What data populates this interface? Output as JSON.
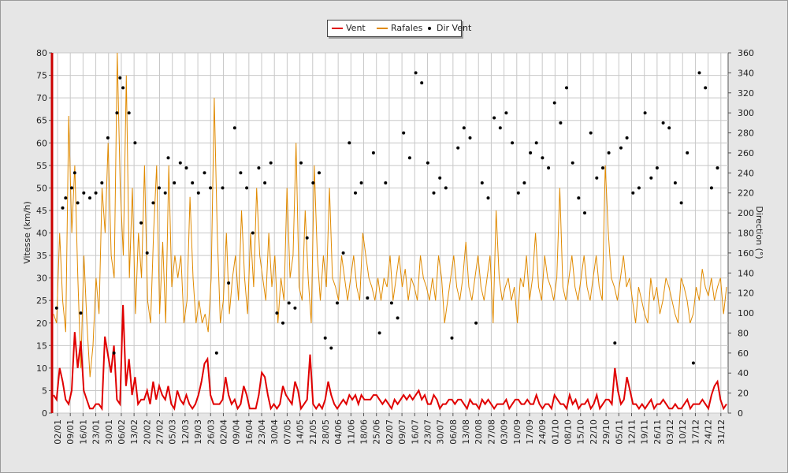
{
  "chart_data": {
    "type": "line",
    "title": "",
    "ylabel": "Vitesse (km/h)",
    "y2label": "Direction (°)",
    "ylim": [
      0,
      80
    ],
    "y2lim": [
      0,
      360
    ],
    "yticks": [
      0,
      5,
      10,
      15,
      20,
      25,
      30,
      35,
      40,
      45,
      50,
      55,
      60,
      65,
      70,
      75,
      80
    ],
    "y2ticks": [
      0,
      20,
      40,
      60,
      80,
      100,
      120,
      140,
      160,
      180,
      200,
      220,
      240,
      260,
      280,
      300,
      320,
      340,
      360
    ],
    "x_tick_labels": [
      "02/01",
      "09/01",
      "16/01",
      "23/01",
      "30/01",
      "06/02",
      "13/02",
      "20/02",
      "27/02",
      "05/03",
      "12/03",
      "19/03",
      "26/03",
      "02/04",
      "09/04",
      "16/04",
      "23/04",
      "30/04",
      "07/05",
      "14/05",
      "21/05",
      "28/05",
      "04/06",
      "11/06",
      "18/06",
      "25/06",
      "02/07",
      "09/07",
      "16/07",
      "23/07",
      "30/07",
      "06/08",
      "13/08",
      "20/08",
      "27/08",
      "03/09",
      "10/09",
      "17/09",
      "24/09",
      "01/10",
      "08/10",
      "15/10",
      "22/10",
      "29/10",
      "05/11",
      "12/11",
      "19/11",
      "26/11",
      "03/12",
      "10/12",
      "17/12",
      "24/12",
      "31/12"
    ],
    "grid": true,
    "legend_position": "top-center",
    "series": [
      {
        "name": "Vent",
        "axis": "left",
        "color": "#e00000",
        "values": [
          4,
          3,
          10,
          7,
          3,
          2,
          5,
          18,
          10,
          16,
          5,
          3,
          1,
          1,
          2,
          2,
          1,
          17,
          13,
          9,
          15,
          3,
          2,
          24,
          6,
          12,
          4,
          8,
          2,
          3,
          3,
          5,
          2,
          7,
          3,
          6,
          4,
          3,
          6,
          2,
          1,
          5,
          3,
          2,
          4,
          2,
          1,
          2,
          4,
          7,
          11,
          12,
          4,
          2,
          2,
          2,
          3,
          8,
          4,
          2,
          3,
          1,
          2,
          6,
          4,
          1,
          1,
          1,
          4,
          9,
          8,
          4,
          1,
          2,
          1,
          2,
          6,
          4,
          3,
          2,
          7,
          5,
          1,
          2,
          3,
          13,
          2,
          1,
          2,
          1,
          3,
          7,
          4,
          2,
          1,
          2,
          3,
          2,
          4,
          3,
          4,
          2,
          4,
          3,
          3,
          3,
          4,
          4,
          3,
          2,
          3,
          2,
          1,
          3,
          2,
          3,
          4,
          3,
          4,
          3,
          4,
          5,
          3,
          4,
          2,
          2,
          4,
          3,
          1,
          2,
          2,
          3,
          3,
          2,
          3,
          3,
          2,
          1,
          3,
          2,
          2,
          1,
          3,
          2,
          3,
          2,
          1,
          2,
          2,
          2,
          3,
          1,
          2,
          3,
          3,
          2,
          2,
          3,
          2,
          2,
          4,
          2,
          1,
          2,
          2,
          1,
          4,
          3,
          2,
          2,
          1,
          4,
          2,
          3,
          1,
          2,
          2,
          3,
          1,
          2,
          4,
          1,
          2,
          3,
          3,
          2,
          10,
          5,
          2,
          3,
          8,
          5,
          2,
          2,
          1,
          2,
          1,
          2,
          3,
          1,
          2,
          2,
          3,
          2,
          1,
          1,
          2,
          1,
          1,
          2,
          3,
          1,
          2,
          2,
          2,
          3,
          2,
          1,
          4,
          6,
          7,
          3,
          1,
          2
        ]
      },
      {
        "name": "Rafales",
        "axis": "left",
        "color": "#e08a00",
        "values": [
          22,
          20,
          40,
          25,
          18,
          66,
          40,
          55,
          30,
          10,
          35,
          20,
          8,
          15,
          30,
          22,
          50,
          40,
          60,
          35,
          30,
          80,
          50,
          35,
          75,
          30,
          50,
          22,
          40,
          30,
          55,
          25,
          20,
          40,
          55,
          22,
          38,
          20,
          55,
          28,
          35,
          30,
          35,
          20,
          25,
          48,
          30,
          20,
          25,
          20,
          22,
          18,
          30,
          70,
          40,
          20,
          25,
          40,
          22,
          30,
          35,
          25,
          45,
          30,
          22,
          40,
          28,
          50,
          35,
          30,
          25,
          40,
          28,
          35,
          20,
          30,
          25,
          50,
          30,
          35,
          60,
          28,
          25,
          45,
          30,
          20,
          55,
          35,
          25,
          35,
          28,
          50,
          30,
          28,
          25,
          35,
          30,
          25,
          30,
          35,
          28,
          25,
          40,
          35,
          30,
          28,
          25,
          30,
          25,
          30,
          28,
          35,
          25,
          30,
          35,
          28,
          32,
          25,
          30,
          28,
          25,
          35,
          30,
          28,
          25,
          30,
          25,
          35,
          30,
          20,
          25,
          30,
          35,
          28,
          25,
          30,
          38,
          28,
          25,
          30,
          35,
          28,
          25,
          30,
          35,
          20,
          45,
          30,
          25,
          28,
          30,
          25,
          28,
          20,
          30,
          28,
          35,
          25,
          30,
          40,
          28,
          25,
          35,
          30,
          28,
          25,
          30,
          50,
          28,
          25,
          30,
          35,
          28,
          25,
          30,
          35,
          28,
          25,
          30,
          35,
          28,
          25,
          55,
          40,
          30,
          28,
          25,
          30,
          35,
          28,
          30,
          25,
          20,
          28,
          25,
          22,
          20,
          30,
          25,
          28,
          22,
          25,
          30,
          28,
          25,
          22,
          20,
          30,
          28,
          25,
          20,
          22,
          28,
          25,
          32,
          28,
          26,
          30,
          25,
          28,
          30,
          22,
          28
        ]
      }
    ],
    "scatter": {
      "name": "Dir Vent",
      "axis": "right",
      "color": "#000000",
      "points": [
        [
          1,
          105
        ],
        [
          3,
          205
        ],
        [
          4,
          215
        ],
        [
          6,
          225
        ],
        [
          7,
          240
        ],
        [
          8,
          210
        ],
        [
          9,
          100
        ],
        [
          10,
          220
        ],
        [
          12,
          215
        ],
        [
          14,
          220
        ],
        [
          16,
          230
        ],
        [
          18,
          275
        ],
        [
          20,
          60
        ],
        [
          21,
          300
        ],
        [
          22,
          335
        ],
        [
          23,
          325
        ],
        [
          25,
          300
        ],
        [
          27,
          270
        ],
        [
          29,
          190
        ],
        [
          31,
          160
        ],
        [
          33,
          210
        ],
        [
          35,
          225
        ],
        [
          37,
          220
        ],
        [
          38,
          255
        ],
        [
          40,
          230
        ],
        [
          42,
          250
        ],
        [
          44,
          245
        ],
        [
          46,
          230
        ],
        [
          48,
          220
        ],
        [
          50,
          240
        ],
        [
          52,
          225
        ],
        [
          54,
          60
        ],
        [
          56,
          225
        ],
        [
          58,
          130
        ],
        [
          60,
          285
        ],
        [
          62,
          240
        ],
        [
          64,
          225
        ],
        [
          66,
          180
        ],
        [
          68,
          245
        ],
        [
          70,
          230
        ],
        [
          72,
          250
        ],
        [
          74,
          100
        ],
        [
          76,
          90
        ],
        [
          78,
          110
        ],
        [
          80,
          105
        ],
        [
          82,
          250
        ],
        [
          84,
          175
        ],
        [
          86,
          230
        ],
        [
          88,
          240
        ],
        [
          90,
          75
        ],
        [
          92,
          65
        ],
        [
          94,
          110
        ],
        [
          96,
          160
        ],
        [
          98,
          270
        ],
        [
          100,
          220
        ],
        [
          102,
          230
        ],
        [
          104,
          115
        ],
        [
          106,
          260
        ],
        [
          108,
          80
        ],
        [
          110,
          230
        ],
        [
          112,
          110
        ],
        [
          114,
          95
        ],
        [
          116,
          280
        ],
        [
          118,
          255
        ],
        [
          120,
          340
        ],
        [
          122,
          330
        ],
        [
          124,
          250
        ],
        [
          126,
          220
        ],
        [
          128,
          235
        ],
        [
          130,
          225
        ],
        [
          132,
          75
        ],
        [
          134,
          265
        ],
        [
          136,
          285
        ],
        [
          138,
          275
        ],
        [
          140,
          90
        ],
        [
          142,
          230
        ],
        [
          144,
          215
        ],
        [
          146,
          295
        ],
        [
          148,
          285
        ],
        [
          150,
          300
        ],
        [
          152,
          270
        ],
        [
          154,
          220
        ],
        [
          156,
          230
        ],
        [
          158,
          260
        ],
        [
          160,
          270
        ],
        [
          162,
          255
        ],
        [
          164,
          245
        ],
        [
          166,
          310
        ],
        [
          168,
          290
        ],
        [
          170,
          325
        ],
        [
          172,
          250
        ],
        [
          174,
          215
        ],
        [
          176,
          200
        ],
        [
          178,
          280
        ],
        [
          180,
          235
        ],
        [
          182,
          245
        ],
        [
          184,
          260
        ],
        [
          186,
          70
        ],
        [
          188,
          265
        ],
        [
          190,
          275
        ],
        [
          192,
          220
        ],
        [
          194,
          225
        ],
        [
          196,
          300
        ],
        [
          198,
          235
        ],
        [
          200,
          245
        ],
        [
          202,
          290
        ],
        [
          204,
          285
        ],
        [
          206,
          230
        ],
        [
          208,
          210
        ],
        [
          210,
          260
        ],
        [
          212,
          50
        ],
        [
          214,
          340
        ],
        [
          216,
          325
        ],
        [
          218,
          225
        ],
        [
          220,
          245
        ]
      ]
    }
  },
  "legend": {
    "items": [
      {
        "label": "Vent",
        "color": "#e00000"
      },
      {
        "label": "Rafales",
        "color": "#e08a00"
      },
      {
        "label": "Dir Vent",
        "color": "#000000"
      }
    ]
  }
}
